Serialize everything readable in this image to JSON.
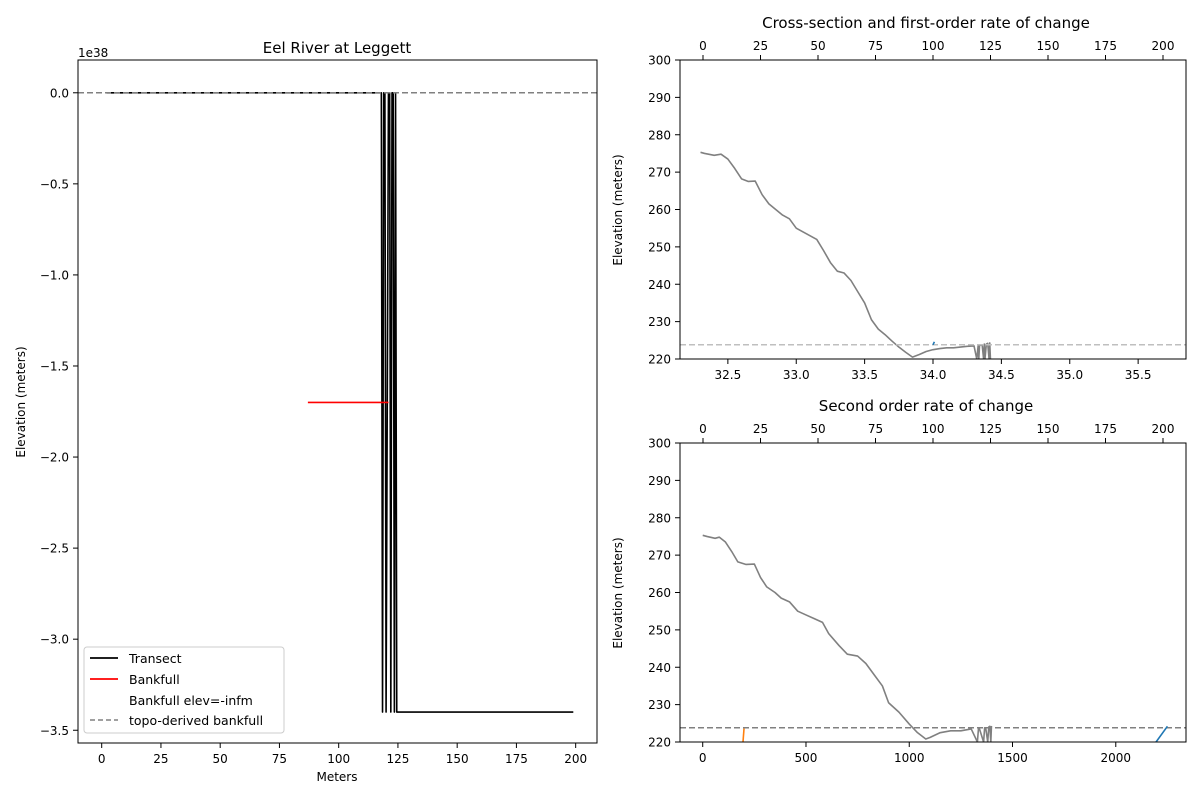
{
  "colors": {
    "transect": "#000000",
    "bankfull": "#ff0000",
    "topo": "#808080",
    "profile": "#808080",
    "topo_light": "#bfbfbf",
    "blue": "#1f77b4",
    "orange": "#ff7f0e"
  },
  "chart_data": [
    {
      "id": "main",
      "type": "line",
      "title": "Eel River at Leggett",
      "xlabel": "Meters",
      "ylabel": "Elevation (meters)",
      "offset_text": "1e38",
      "xlim": [
        -10,
        209
      ],
      "ylim": [
        -3.57,
        0.18
      ],
      "xticks": [
        0,
        25,
        50,
        75,
        100,
        125,
        150,
        175,
        200
      ],
      "yticks": [
        0.0,
        -0.5,
        -1.0,
        -1.5,
        -2.0,
        -2.5,
        -3.0,
        -3.5
      ],
      "ytick_labels": [
        "0.0",
        "−0.5",
        "−1.0",
        "−1.5",
        "−2.0",
        "−2.5",
        "−3.0",
        "−3.5"
      ],
      "series": [
        {
          "name": "Transect",
          "style": "solid",
          "color": "#000000",
          "x": [
            2,
            117,
            118,
            118.5,
            119,
            119.5,
            120,
            121,
            121.5,
            122,
            122.5,
            123,
            123.5,
            124,
            124.5,
            125,
            199
          ],
          "y": [
            0,
            0,
            0,
            -3.4,
            0,
            0,
            -3.4,
            0,
            0,
            -3.4,
            0,
            0,
            -3.4,
            0,
            -3.4,
            -3.4,
            -3.4
          ]
        },
        {
          "name": "Bankfull",
          "style": "solid",
          "color": "#ff0000",
          "x": [
            87,
            121
          ],
          "y": [
            -1.7,
            -1.7
          ]
        },
        {
          "name": "topo-derived bankfull",
          "style": "dashed",
          "color": "#808080",
          "x": [
            -10,
            209
          ],
          "y": [
            0,
            0
          ]
        }
      ],
      "legend": {
        "position": "lower-left",
        "entries": [
          {
            "label": "Transect",
            "color": "#000000",
            "style": "solid"
          },
          {
            "label": "Bankfull",
            "color": "#ff0000",
            "style": "solid"
          },
          {
            "label": "Bankfull elev=-infm",
            "color": "",
            "style": "none"
          },
          {
            "label": "topo-derived bankfull",
            "color": "#808080",
            "style": "dashed"
          }
        ]
      }
    },
    {
      "id": "first",
      "type": "line",
      "title": "Cross-section and first-order rate of change",
      "xlabel": "",
      "ylabel": "Elevation (meters)",
      "xlim": [
        32.15,
        35.85
      ],
      "ylim": [
        220,
        300
      ],
      "xticks": [
        32.5,
        33.0,
        33.5,
        34.0,
        34.5,
        35.0,
        35.5
      ],
      "xtick_labels": [
        "32.5",
        "33.0",
        "33.5",
        "34.0",
        "34.5",
        "35.0",
        "35.5"
      ],
      "yticks": [
        220,
        230,
        240,
        250,
        260,
        270,
        280,
        290,
        300
      ],
      "top_xlim": [
        -10,
        210
      ],
      "top_xticks": [
        0,
        25,
        50,
        75,
        100,
        125,
        150,
        175,
        200
      ],
      "series": [
        {
          "name": "",
          "style": "solid",
          "color": "#808080",
          "x": [
            32.3,
            32.33,
            32.4,
            32.45,
            32.5,
            32.55,
            32.6,
            32.65,
            32.7,
            32.75,
            32.8,
            32.85,
            32.9,
            32.95,
            33.0,
            33.05,
            33.1,
            33.15,
            33.2,
            33.25,
            33.3,
            33.35,
            33.4,
            33.45,
            33.5,
            33.55,
            33.6,
            33.65,
            33.7,
            33.75,
            33.8,
            33.85,
            33.9,
            33.95,
            34.0,
            34.05,
            34.1,
            34.15,
            34.2,
            34.25,
            34.3,
            34.32,
            34.33,
            34.335,
            34.34,
            34.35,
            34.36,
            34.37,
            34.375,
            34.38,
            34.39,
            34.4,
            34.41,
            34.415,
            34.42
          ],
          "y": [
            275.3,
            275,
            274.5,
            274.8,
            273.5,
            271,
            268.2,
            267.5,
            267.6,
            264,
            261.5,
            260,
            258.5,
            257.5,
            255,
            254,
            253,
            252,
            249,
            245.8,
            243.5,
            243,
            241,
            238,
            235,
            230.5,
            228,
            226.5,
            224.8,
            223.2,
            221.8,
            220.5,
            221.2,
            222,
            222.5,
            222.8,
            223,
            223,
            223.2,
            223.4,
            223.5,
            220,
            223.5,
            220,
            223.5,
            223.8,
            223.6,
            220,
            224,
            220,
            224,
            224.2,
            220,
            224.3,
            220
          ]
        },
        {
          "name": "",
          "style": "dashed",
          "color": "#bfbfbf",
          "x": [
            32.15,
            35.85
          ],
          "y": [
            223.8,
            223.8
          ]
        },
        {
          "name": "",
          "style": "solid",
          "color": "#1f77b4",
          "x": [
            34.0,
            34.01
          ],
          "y": [
            223.8,
            224.6
          ]
        }
      ]
    },
    {
      "id": "second",
      "type": "line",
      "title": "Second order rate of change",
      "xlabel": "",
      "ylabel": "Elevation (meters)",
      "xlim": [
        -110,
        2340
      ],
      "ylim": [
        220,
        300
      ],
      "xticks": [
        0,
        500,
        1000,
        1500,
        2000
      ],
      "xtick_labels": [
        "0",
        "500",
        "1000",
        "1500",
        "2000"
      ],
      "yticks": [
        220,
        230,
        240,
        250,
        260,
        270,
        280,
        290,
        300
      ],
      "top_xlim": [
        -10,
        210
      ],
      "top_xticks": [
        0,
        25,
        50,
        75,
        100,
        125,
        150,
        175,
        200
      ],
      "series": [
        {
          "name": "",
          "style": "solid",
          "color": "#808080",
          "x": [
            0,
            20,
            60,
            80,
            110,
            140,
            170,
            210,
            250,
            280,
            310,
            350,
            380,
            420,
            460,
            500,
            540,
            580,
            610,
            660,
            700,
            750,
            790,
            830,
            870,
            900,
            950,
            1000,
            1040,
            1080,
            1100,
            1150,
            1200,
            1250,
            1300,
            1330,
            1335,
            1340,
            1360,
            1365,
            1370,
            1380,
            1385,
            1390,
            1395,
            1398
          ],
          "y": [
            275.3,
            275,
            274.5,
            274.8,
            273.5,
            271,
            268.2,
            267.5,
            267.6,
            264,
            261.5,
            260,
            258.5,
            257.5,
            255,
            254,
            253,
            252,
            249,
            245.8,
            243.5,
            243,
            241,
            238,
            235,
            230.5,
            228,
            224.8,
            222.5,
            220.8,
            221.2,
            222.5,
            223,
            223,
            223.5,
            220,
            223.5,
            223.5,
            220,
            223.8,
            223.8,
            220,
            224,
            224.2,
            220,
            224.3
          ]
        },
        {
          "name": "",
          "style": "dashed",
          "color": "#808080",
          "x": [
            -110,
            2340
          ],
          "y": [
            223.8,
            223.8
          ]
        },
        {
          "name": "",
          "style": "solid",
          "color": "#ff7f0e",
          "x": [
            195,
            200
          ],
          "y": [
            220,
            223.6
          ]
        },
        {
          "name": "",
          "style": "solid",
          "color": "#1f77b4",
          "x": [
            2195,
            2250
          ],
          "y": [
            220,
            224.2
          ]
        }
      ]
    }
  ]
}
